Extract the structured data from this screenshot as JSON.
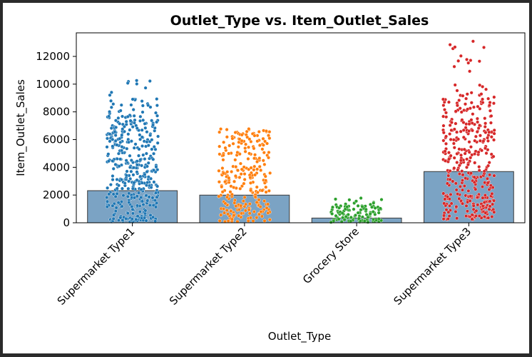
{
  "chart_data": {
    "type": "bar",
    "title": "Outlet_Type vs. Item_Outlet_Sales",
    "xlabel": "Outlet_Type",
    "ylabel": "Item_Outlet_Sales",
    "categories": [
      "Supermarket Type1",
      "Supermarket Type2",
      "Grocery Store",
      "Supermarket Type3"
    ],
    "values": [
      2316,
      1995,
      340,
      3694
    ],
    "ylim": [
      0,
      13700
    ],
    "yticks": [
      0,
      2000,
      4000,
      6000,
      8000,
      10000,
      12000
    ],
    "bar_color": "#7ba3c4",
    "grid": false,
    "strip_overlay": {
      "type": "scatter",
      "series": [
        {
          "category": "Supermarket Type1",
          "color": "#1f77b4",
          "min": 70,
          "max": 10260,
          "dense_max": 7800
        },
        {
          "category": "Supermarket Type2",
          "color": "#ff7f0e",
          "min": 70,
          "max": 6770,
          "dense_max": 6300
        },
        {
          "category": "Grocery Store",
          "color": "#2ca02c",
          "min": 35,
          "max": 1780,
          "dense_max": 1300
        },
        {
          "category": "Supermarket Type3",
          "color": "#d62728",
          "min": 240,
          "max": 13090,
          "dense_max": 9300
        }
      ]
    }
  }
}
